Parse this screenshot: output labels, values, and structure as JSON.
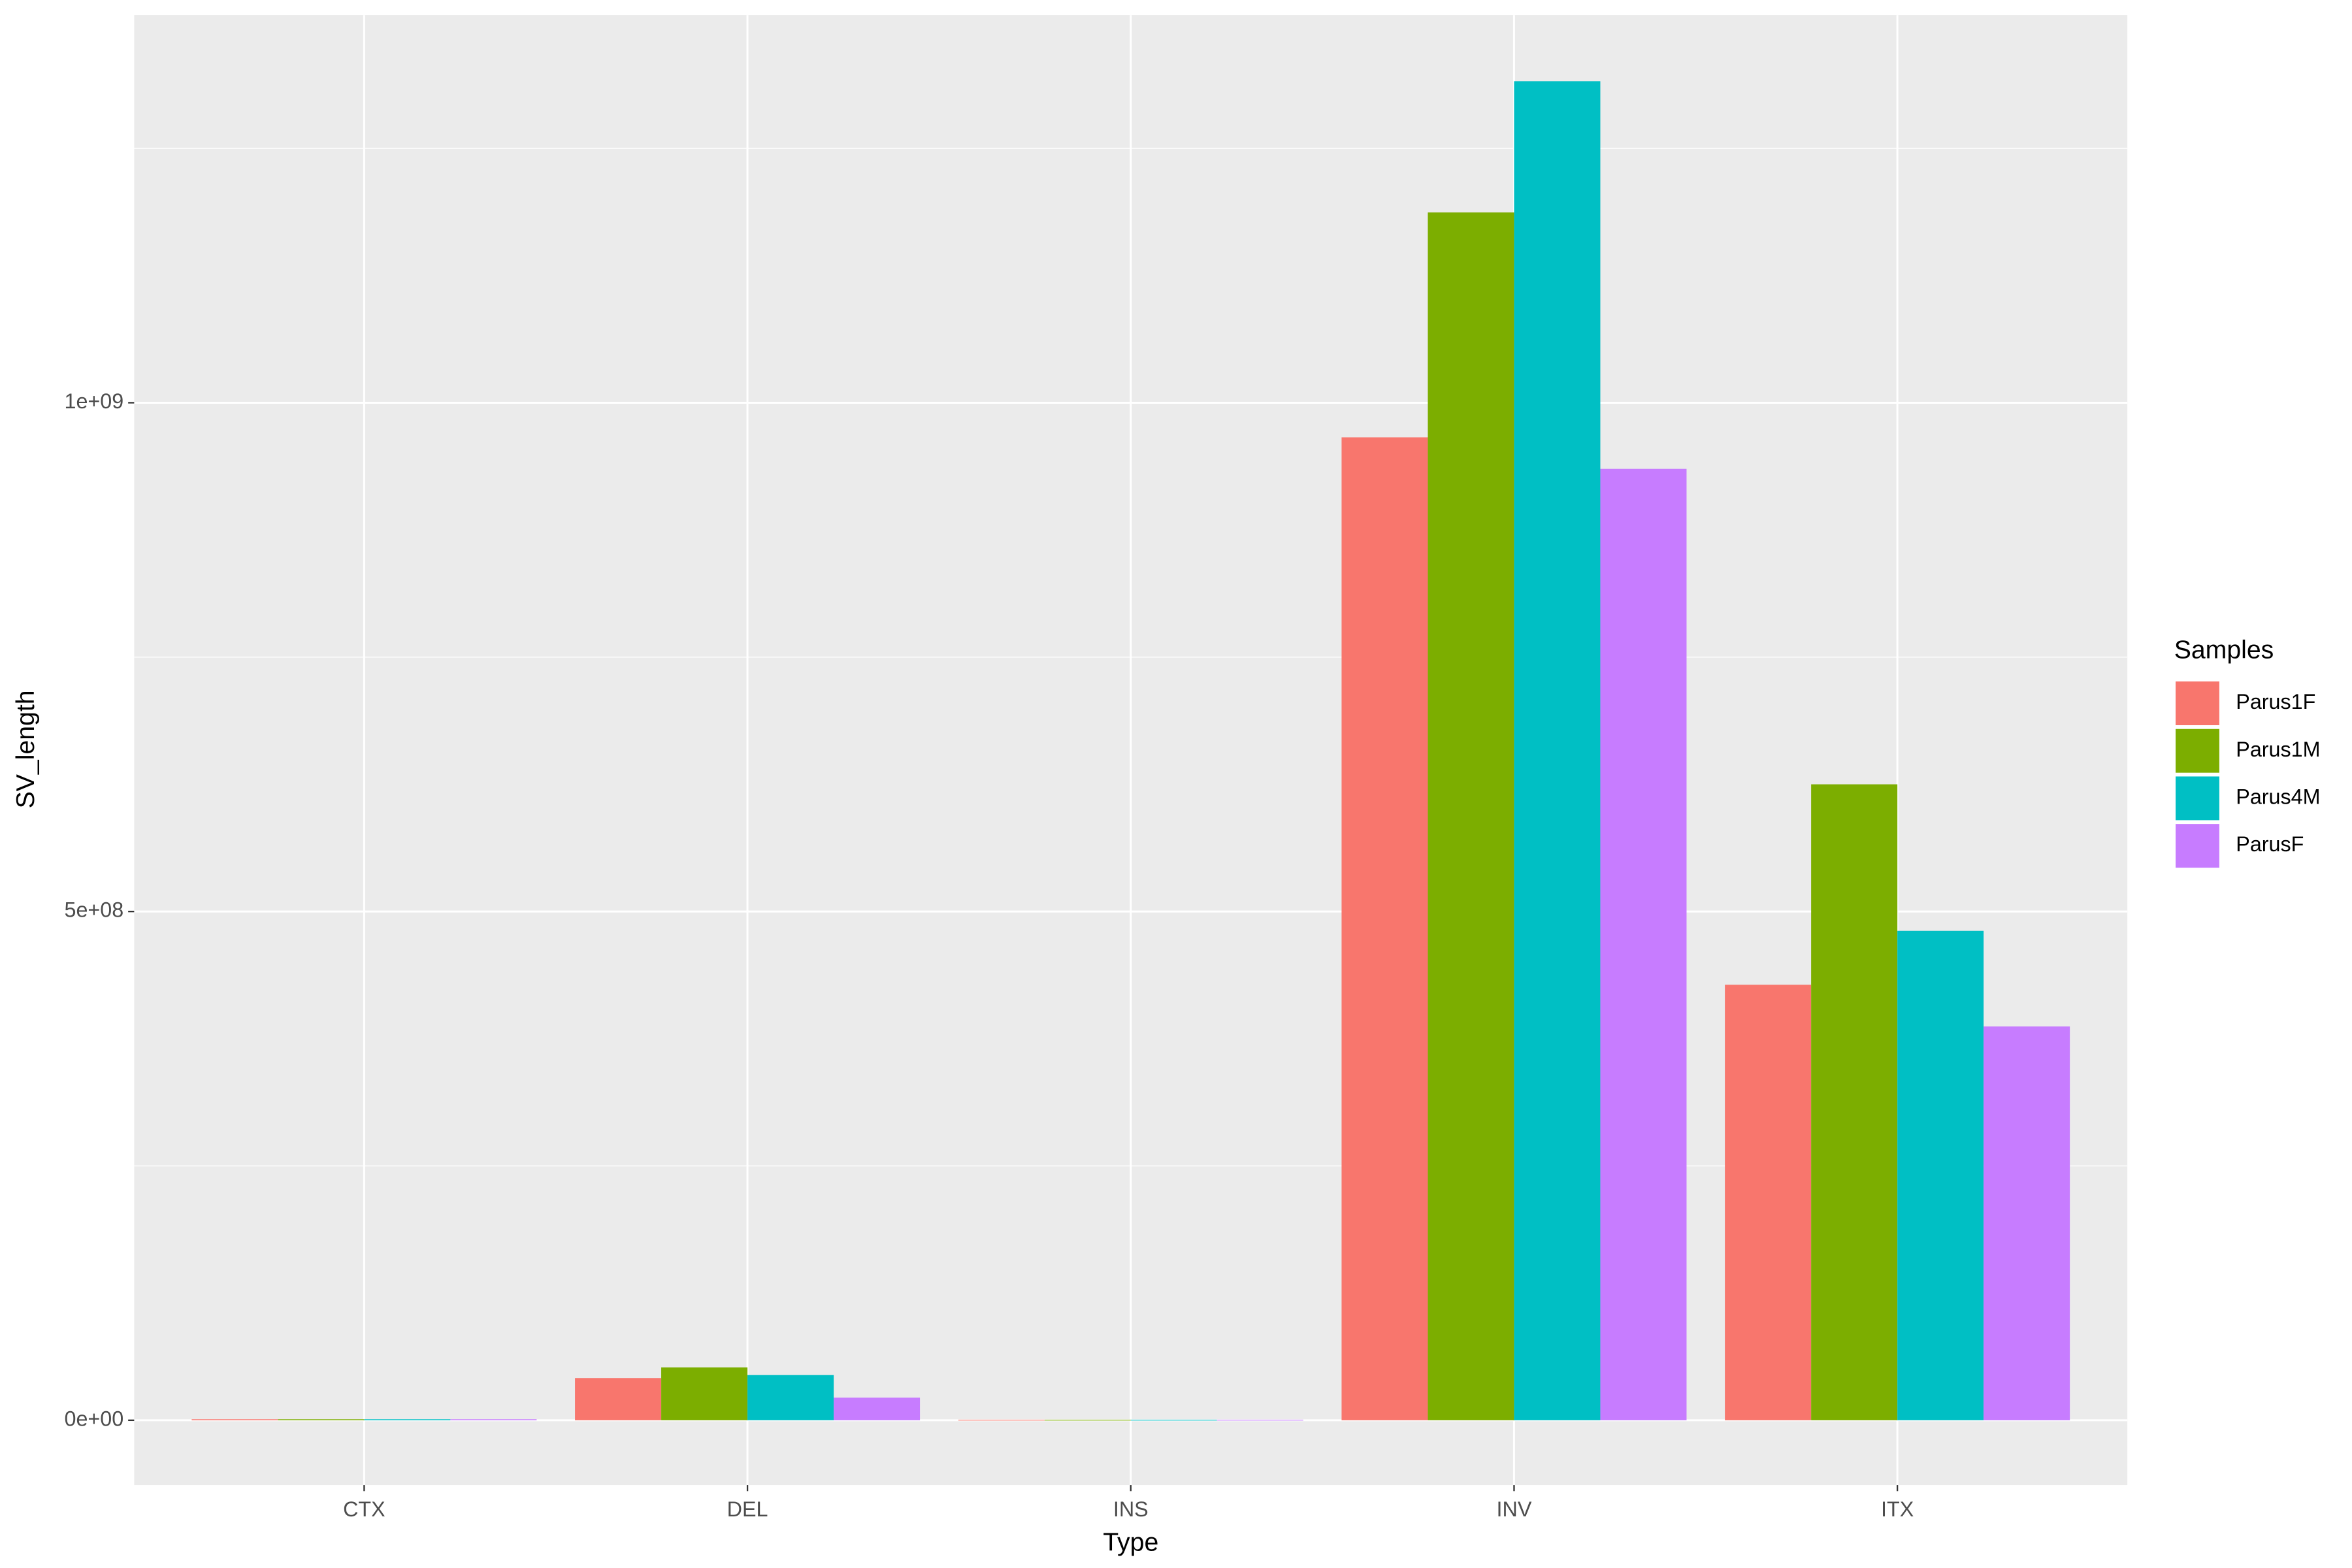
{
  "chart_data": {
    "type": "bar",
    "x_label": "Type",
    "y_label": "SV_length",
    "legend_title": "Samples",
    "categories": [
      "CTX",
      "DEL",
      "INS",
      "INV",
      "ITX"
    ],
    "series": [
      {
        "name": "Parus1F",
        "color": "#F8766D",
        "values": [
          1000000,
          41500000,
          500000,
          966000000,
          428000000
        ]
      },
      {
        "name": "Parus1M",
        "color": "#7CAE00",
        "values": [
          1000000,
          51900000,
          500000,
          1187000000,
          625000000
        ]
      },
      {
        "name": "Parus4M",
        "color": "#00BFC4",
        "values": [
          1000000,
          44400000,
          500000,
          1316000000,
          481000000
        ]
      },
      {
        "name": "ParusF",
        "color": "#C77CFF",
        "values": [
          1000000,
          22200000,
          500000,
          935000000,
          387000000
        ]
      }
    ],
    "ylim": [
      -63700000,
      1381000000
    ],
    "yticks": [
      {
        "value": 0,
        "label": "0e+00"
      },
      {
        "value": 500000000,
        "label": "5e+08"
      },
      {
        "value": 1000000000,
        "label": "1e+09"
      }
    ],
    "minor_yticks": [
      250000000,
      750000000,
      1250000000
    ],
    "grid": true,
    "legend": "right"
  }
}
